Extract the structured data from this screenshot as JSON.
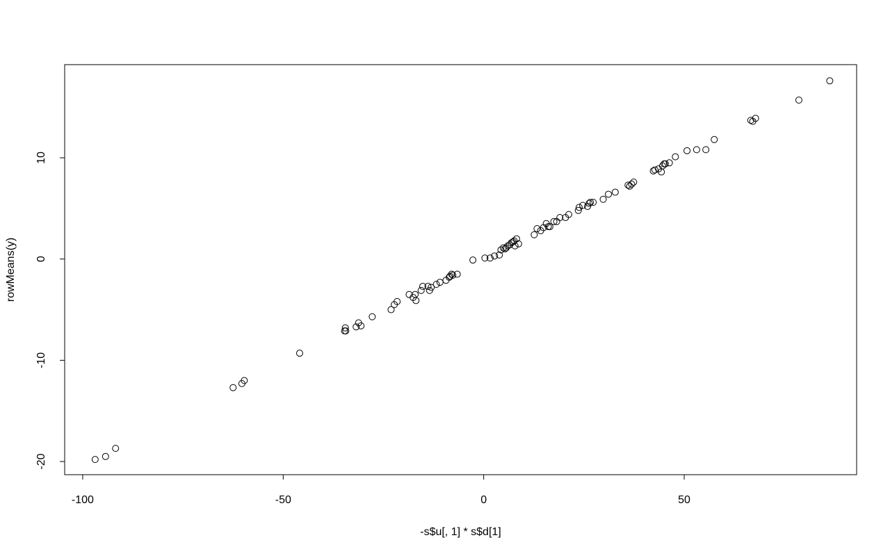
{
  "chart_data": {
    "type": "scatter",
    "title": "",
    "xlabel": "-s$u[, 1] * s$d[1]",
    "ylabel": "rowMeans(y)",
    "xlim": [
      -104.5,
      93
    ],
    "ylim": [
      -21.3,
      19.2
    ],
    "xticks": [
      -100,
      -50,
      0,
      50
    ],
    "yticks": [
      -20,
      -10,
      0,
      10
    ],
    "xtick_labels": [
      "-100",
      "-50",
      "0",
      "50"
    ],
    "ytick_labels": [
      "-20",
      "-10",
      "0",
      "10"
    ],
    "grid": false,
    "legend": "none",
    "marker": "open-circle",
    "color": "#000000",
    "points": [
      [
        -96.9,
        -19.8
      ],
      [
        -94.3,
        -19.5
      ],
      [
        -91.8,
        -18.7
      ],
      [
        -62.5,
        -12.7
      ],
      [
        -60.3,
        -12.3
      ],
      [
        -59.7,
        -12.0
      ],
      [
        -45.9,
        -9.3
      ],
      [
        -34.7,
        -7.1
      ],
      [
        -34.4,
        -7.1
      ],
      [
        -34.5,
        -6.8
      ],
      [
        -31.8,
        -6.7
      ],
      [
        -31.2,
        -6.3
      ],
      [
        -30.6,
        -6.6
      ],
      [
        -27.8,
        -5.7
      ],
      [
        -23.1,
        -5.0
      ],
      [
        -22.3,
        -4.5
      ],
      [
        -21.6,
        -4.2
      ],
      [
        -18.6,
        -3.5
      ],
      [
        -17.6,
        -3.8
      ],
      [
        -17.1,
        -3.5
      ],
      [
        -16.9,
        -4.1
      ],
      [
        -15.6,
        -3.1
      ],
      [
        -15.2,
        -2.7
      ],
      [
        -13.9,
        -2.7
      ],
      [
        -13.5,
        -3.1
      ],
      [
        -13.1,
        -2.8
      ],
      [
        -11.8,
        -2.5
      ],
      [
        -10.9,
        -2.3
      ],
      [
        -9.4,
        -2.1
      ],
      [
        -8.6,
        -1.8
      ],
      [
        -8.4,
        -1.7
      ],
      [
        -8.0,
        -1.5
      ],
      [
        -7.7,
        -1.6
      ],
      [
        -6.6,
        -1.5
      ],
      [
        -2.7,
        -0.1
      ],
      [
        0.3,
        0.1
      ],
      [
        1.6,
        0.1
      ],
      [
        2.7,
        0.3
      ],
      [
        3.9,
        0.4
      ],
      [
        4.3,
        0.9
      ],
      [
        4.9,
        1.1
      ],
      [
        5.3,
        1.0
      ],
      [
        5.6,
        1.1
      ],
      [
        6.0,
        1.3
      ],
      [
        6.5,
        1.4
      ],
      [
        6.9,
        1.6
      ],
      [
        7.3,
        1.7
      ],
      [
        7.6,
        1.8
      ],
      [
        7.8,
        1.3
      ],
      [
        8.2,
        2.0
      ],
      [
        8.7,
        1.5
      ],
      [
        12.6,
        2.4
      ],
      [
        13.3,
        3.0
      ],
      [
        14.2,
        2.8
      ],
      [
        14.9,
        3.1
      ],
      [
        15.6,
        3.5
      ],
      [
        16.1,
        3.2
      ],
      [
        16.5,
        3.2
      ],
      [
        17.5,
        3.7
      ],
      [
        18.2,
        3.7
      ],
      [
        19.0,
        4.1
      ],
      [
        20.4,
        4.1
      ],
      [
        21.2,
        4.4
      ],
      [
        23.6,
        4.8
      ],
      [
        23.8,
        5.1
      ],
      [
        24.7,
        5.3
      ],
      [
        25.9,
        5.2
      ],
      [
        26.3,
        5.5
      ],
      [
        26.6,
        5.6
      ],
      [
        27.3,
        5.6
      ],
      [
        29.8,
        5.9
      ],
      [
        31.1,
        6.4
      ],
      [
        32.8,
        6.6
      ],
      [
        36.0,
        7.3
      ],
      [
        36.4,
        7.2
      ],
      [
        36.9,
        7.4
      ],
      [
        37.4,
        7.6
      ],
      [
        42.3,
        8.7
      ],
      [
        42.7,
        8.8
      ],
      [
        43.6,
        8.9
      ],
      [
        44.3,
        8.6
      ],
      [
        44.6,
        9.2
      ],
      [
        45.0,
        9.4
      ],
      [
        45.3,
        9.4
      ],
      [
        46.3,
        9.5
      ],
      [
        47.8,
        10.1
      ],
      [
        50.7,
        10.7
      ],
      [
        53.1,
        10.8
      ],
      [
        55.4,
        10.8
      ],
      [
        57.5,
        11.8
      ],
      [
        66.6,
        13.7
      ],
      [
        67.1,
        13.6
      ],
      [
        67.8,
        13.9
      ],
      [
        78.6,
        15.7
      ],
      [
        86.3,
        17.6
      ]
    ]
  }
}
